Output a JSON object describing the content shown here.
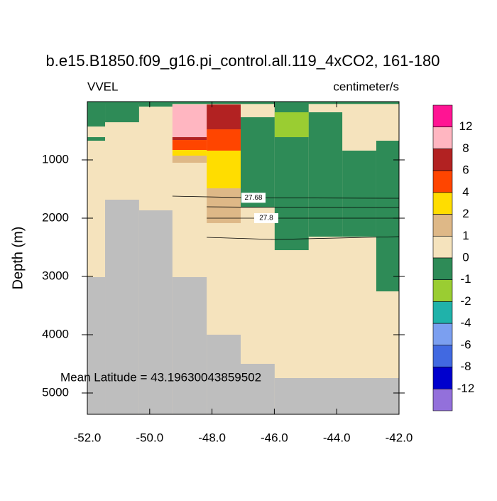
{
  "chart_data": {
    "type": "contour-section",
    "title": "b.e15.B1850.f09_g16.pi_control.all.119_4xCO2, 161-180",
    "left_label": "VVEL",
    "right_label": "centimeter/s",
    "ylabel": "Depth (m)",
    "annotation": "Mean Latitude = 43.19630043859502",
    "xlim": [
      -52,
      -42
    ],
    "xticks": [
      {
        "value": -52,
        "label": "-52.0"
      },
      {
        "value": -50,
        "label": "-50.0"
      },
      {
        "value": -48,
        "label": "-48.0"
      },
      {
        "value": -46,
        "label": "-46.0"
      },
      {
        "value": -44,
        "label": "-44.0"
      },
      {
        "value": -42,
        "label": "-42.0"
      }
    ],
    "ylim": [
      5366,
      0
    ],
    "yticks": [
      1000,
      2000,
      3000,
      4000,
      5000
    ],
    "levels": [
      12,
      8,
      6,
      4,
      2,
      1,
      0,
      -1,
      -2,
      -4,
      -6,
      -8,
      -12
    ],
    "colors": [
      "#ff1493",
      "#ffb6c1",
      "#b22222",
      "#ff4500",
      "#ffdd00",
      "#deb887",
      "#f5e3bd",
      "#2e8b57",
      "#9acd32",
      "#20b2aa",
      "#7b9ff0",
      "#4169e1",
      "#0000cd",
      "#9370db"
    ],
    "land_color": "#bebebe",
    "cells": [
      {
        "x": [
          -52,
          -42
        ],
        "depth": [
          0,
          5366
        ],
        "value": 0.5
      },
      {
        "x": [
          -52,
          -42
        ],
        "depth": [
          0,
          40
        ],
        "value": -0.5
      },
      {
        "x": [
          -52,
          -51.43
        ],
        "depth": [
          24,
          427
        ],
        "value": -0.5
      },
      {
        "x": [
          -51.43,
          -50.34
        ],
        "depth": [
          24,
          354
        ],
        "value": -0.5
      },
      {
        "x": [
          -52,
          -51.43
        ],
        "depth": [
          610,
          671
        ],
        "value": -0.5
      },
      {
        "x": [
          -50.34,
          -49.27
        ],
        "depth": [
          24,
          85
        ],
        "value": -0.5
      },
      {
        "x": [
          -47.08,
          -45.99
        ],
        "depth": [
          268,
          1817
        ],
        "value": -0.5
      },
      {
        "x": [
          -45.99,
          -44.9
        ],
        "depth": [
          24,
          2549
        ],
        "value": -0.5
      },
      {
        "x": [
          -44.9,
          -43.82
        ],
        "depth": [
          183,
          2317
        ],
        "value": -0.5
      },
      {
        "x": [
          -43.82,
          -42.73
        ],
        "depth": [
          841,
          2317
        ],
        "value": -0.5
      },
      {
        "x": [
          -42.73,
          -42
        ],
        "depth": [
          671,
          3256
        ],
        "value": -0.5
      },
      {
        "x": [
          -45.99,
          -44.9
        ],
        "depth": [
          183,
          610
        ],
        "value": -1.5
      },
      {
        "x": [
          -49.27,
          -48.17
        ],
        "depth": [
          49,
          610
        ],
        "value": 10
      },
      {
        "x": [
          -48.17,
          -47.08
        ],
        "depth": [
          49,
          476
        ],
        "value": 7
      },
      {
        "x": [
          -49.27,
          -48.17
        ],
        "depth": [
          610,
          659
        ],
        "value": 7
      },
      {
        "x": [
          -48.17,
          -47.08
        ],
        "depth": [
          476,
          841
        ],
        "value": 5
      },
      {
        "x": [
          -49.27,
          -48.17
        ],
        "depth": [
          659,
          830
        ],
        "value": 5
      },
      {
        "x": [
          -49.27,
          -48.17
        ],
        "depth": [
          830,
          927
        ],
        "value": 3
      },
      {
        "x": [
          -48.17,
          -47.08
        ],
        "depth": [
          841,
          1488
        ],
        "value": 3
      },
      {
        "x": [
          -49.27,
          -48.17
        ],
        "depth": [
          927,
          1049
        ],
        "value": 1.5
      },
      {
        "x": [
          -48.17,
          -47.08
        ],
        "depth": [
          1488,
          2085
        ],
        "value": 1.5
      }
    ],
    "land": [
      {
        "x": [
          -52,
          -51.43
        ],
        "depth": [
          3012,
          5366
        ]
      },
      {
        "x": [
          -51.43,
          -50.34
        ],
        "depth": [
          1683,
          5366
        ]
      },
      {
        "x": [
          -50.34,
          -49.27
        ],
        "depth": [
          1866,
          5366
        ]
      },
      {
        "x": [
          -49.27,
          -48.17
        ],
        "depth": [
          3012,
          5366
        ]
      },
      {
        "x": [
          -48.17,
          -47.08
        ],
        "depth": [
          4000,
          5366
        ]
      },
      {
        "x": [
          -47.08,
          -45.99
        ],
        "depth": [
          4500,
          5366
        ]
      },
      {
        "x": [
          -45.99,
          -42
        ],
        "depth": [
          4744,
          5366
        ]
      }
    ],
    "contours": [
      {
        "value": 27.68,
        "labeled": true,
        "x": [
          -49.27,
          -46.67,
          -42
        ],
        "depth": [
          1622,
          1650,
          1659
        ]
      },
      {
        "value": 27.76,
        "labeled": false,
        "x": [
          -48.17,
          -46.67,
          -42
        ],
        "depth": [
          1805,
          1812,
          1817
        ]
      },
      {
        "value": 27.8,
        "labeled": true,
        "x": [
          -48.17,
          -46.26,
          -42
        ],
        "depth": [
          2000,
          2000,
          2000
        ]
      },
      {
        "value": 27.84,
        "labeled": false,
        "x": [
          -48.17,
          -46,
          -42
        ],
        "depth": [
          2329,
          2366,
          2317
        ]
      }
    ]
  }
}
